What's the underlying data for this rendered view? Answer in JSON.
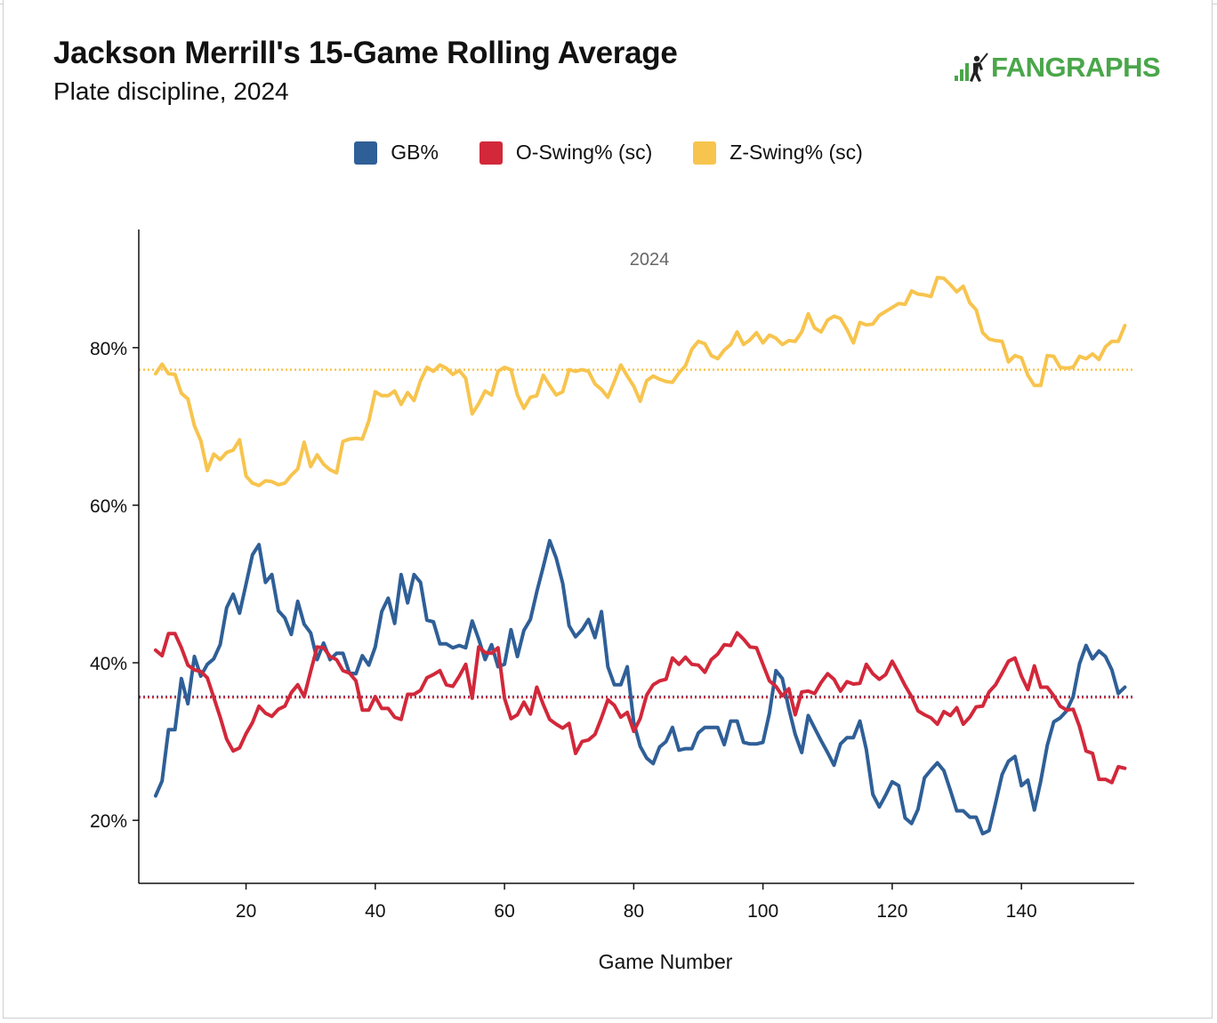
{
  "header": {
    "title": "Jackson Merrill's 15-Game Rolling Average",
    "subtitle": "Plate discipline, 2024",
    "brand": "FANGRAPHS"
  },
  "colors": {
    "brand": "#4aa64a",
    "gb": "#2f5f97",
    "oswing": "#d2283a",
    "zswing": "#f7c44e"
  },
  "chart_data": {
    "type": "line",
    "panel_label": "2024",
    "xlabel": "Game Number",
    "ylabel": "",
    "xlim": [
      4.5,
      156.5
    ],
    "ylim": [
      0.12,
      0.95
    ],
    "xticks": [
      20,
      40,
      60,
      80,
      100,
      120,
      140
    ],
    "yticks": [
      0.2,
      0.4,
      0.6,
      0.8
    ],
    "ytick_labels": [
      "20%",
      "40%",
      "60%",
      "80%"
    ],
    "grid": false,
    "legend_position": "top-center",
    "series": [
      {
        "name": "GB%",
        "color": "#2f5f97",
        "x": [
          6,
          7,
          8,
          9,
          10,
          11,
          12,
          13,
          14,
          15,
          16,
          17,
          18,
          19,
          20,
          21,
          22,
          23,
          24,
          25,
          26,
          27,
          28,
          29,
          30,
          31,
          32,
          33,
          34,
          35,
          36,
          37,
          38,
          39,
          40,
          41,
          42,
          43,
          44,
          45,
          46,
          47,
          48,
          49,
          50,
          51,
          52,
          53,
          54,
          55,
          56,
          57,
          58,
          59,
          60,
          61,
          62,
          63,
          64,
          65,
          66,
          67,
          68,
          69,
          70,
          71,
          72,
          73,
          74,
          75,
          76,
          77,
          78,
          79,
          80,
          81,
          82,
          83,
          84,
          85,
          86,
          87,
          88,
          89,
          90,
          91,
          92,
          93,
          94,
          95,
          96,
          97,
          98,
          99,
          100,
          101,
          102,
          103,
          104,
          105,
          106,
          107,
          108,
          109,
          110,
          111,
          112,
          113,
          114,
          115,
          116,
          117,
          118,
          119,
          120,
          121,
          122,
          123,
          124,
          125,
          126,
          127,
          128,
          129,
          130,
          131,
          132,
          133,
          134,
          135,
          136,
          137,
          138,
          139,
          140,
          141,
          142,
          143,
          144,
          145,
          146,
          147,
          148,
          149,
          150,
          151,
          152,
          153,
          154,
          155,
          156
        ],
        "values": [
          0.231,
          0.25,
          0.315,
          0.315,
          0.38,
          0.348,
          0.408,
          0.383,
          0.398,
          0.405,
          0.423,
          0.47,
          0.487,
          0.463,
          0.5,
          0.537,
          0.55,
          0.502,
          0.512,
          0.466,
          0.457,
          0.436,
          0.478,
          0.449,
          0.438,
          0.404,
          0.425,
          0.404,
          0.412,
          0.412,
          0.387,
          0.386,
          0.409,
          0.397,
          0.42,
          0.465,
          0.482,
          0.45,
          0.512,
          0.476,
          0.512,
          0.502,
          0.454,
          0.452,
          0.424,
          0.424,
          0.419,
          0.422,
          0.419,
          0.453,
          0.43,
          0.404,
          0.423,
          0.395,
          0.398,
          0.442,
          0.408,
          0.441,
          0.455,
          0.49,
          0.522,
          0.555,
          0.533,
          0.501,
          0.447,
          0.433,
          0.442,
          0.455,
          0.432,
          0.465,
          0.395,
          0.372,
          0.372,
          0.395,
          0.324,
          0.294,
          0.279,
          0.272,
          0.293,
          0.3,
          0.318,
          0.289,
          0.291,
          0.291,
          0.311,
          0.318,
          0.318,
          0.318,
          0.296,
          0.326,
          0.326,
          0.299,
          0.297,
          0.297,
          0.299,
          0.336,
          0.39,
          0.38,
          0.342,
          0.309,
          0.286,
          0.333,
          0.317,
          0.301,
          0.286,
          0.27,
          0.297,
          0.305,
          0.305,
          0.326,
          0.29,
          0.233,
          0.217,
          0.232,
          0.249,
          0.244,
          0.203,
          0.196,
          0.214,
          0.254,
          0.264,
          0.273,
          0.263,
          0.238,
          0.212,
          0.212,
          0.204,
          0.204,
          0.183,
          0.187,
          0.222,
          0.258,
          0.275,
          0.281,
          0.244,
          0.251,
          0.213,
          0.25,
          0.295,
          0.325,
          0.33,
          0.339,
          0.357,
          0.399,
          0.422,
          0.405,
          0.415,
          0.408,
          0.391,
          0.361,
          0.369
        ]
      },
      {
        "name": "O-Swing% (sc)",
        "color": "#d2283a",
        "x": [
          6,
          7,
          8,
          9,
          10,
          11,
          12,
          13,
          14,
          15,
          16,
          17,
          18,
          19,
          20,
          21,
          22,
          23,
          24,
          25,
          26,
          27,
          28,
          29,
          30,
          31,
          32,
          33,
          34,
          35,
          36,
          37,
          38,
          39,
          40,
          41,
          42,
          43,
          44,
          45,
          46,
          47,
          48,
          49,
          50,
          51,
          52,
          53,
          54,
          55,
          56,
          57,
          58,
          59,
          60,
          61,
          62,
          63,
          64,
          65,
          66,
          67,
          68,
          69,
          70,
          71,
          72,
          73,
          74,
          75,
          76,
          77,
          78,
          79,
          80,
          81,
          82,
          83,
          84,
          85,
          86,
          87,
          88,
          89,
          90,
          91,
          92,
          93,
          94,
          95,
          96,
          97,
          98,
          99,
          100,
          101,
          102,
          103,
          104,
          105,
          106,
          107,
          108,
          109,
          110,
          111,
          112,
          113,
          114,
          115,
          116,
          117,
          118,
          119,
          120,
          121,
          122,
          123,
          124,
          125,
          126,
          127,
          128,
          129,
          130,
          131,
          132,
          133,
          134,
          135,
          136,
          137,
          138,
          139,
          140,
          141,
          142,
          143,
          144,
          145,
          146,
          147,
          148,
          149,
          150,
          151,
          152,
          153,
          154,
          155,
          156
        ],
        "values": [
          0.416,
          0.409,
          0.437,
          0.437,
          0.419,
          0.397,
          0.391,
          0.389,
          0.381,
          0.356,
          0.331,
          0.303,
          0.288,
          0.292,
          0.31,
          0.324,
          0.345,
          0.336,
          0.332,
          0.341,
          0.345,
          0.362,
          0.372,
          0.357,
          0.389,
          0.42,
          0.419,
          0.408,
          0.404,
          0.39,
          0.387,
          0.377,
          0.34,
          0.34,
          0.357,
          0.342,
          0.342,
          0.331,
          0.328,
          0.36,
          0.36,
          0.365,
          0.381,
          0.385,
          0.39,
          0.372,
          0.37,
          0.383,
          0.398,
          0.355,
          0.42,
          0.413,
          0.412,
          0.419,
          0.355,
          0.329,
          0.334,
          0.35,
          0.335,
          0.369,
          0.347,
          0.328,
          0.322,
          0.317,
          0.323,
          0.285,
          0.3,
          0.302,
          0.309,
          0.33,
          0.353,
          0.346,
          0.331,
          0.337,
          0.313,
          0.329,
          0.359,
          0.372,
          0.377,
          0.379,
          0.406,
          0.398,
          0.407,
          0.398,
          0.397,
          0.388,
          0.404,
          0.411,
          0.423,
          0.422,
          0.438,
          0.43,
          0.42,
          0.419,
          0.398,
          0.377,
          0.37,
          0.358,
          0.367,
          0.334,
          0.363,
          0.364,
          0.361,
          0.375,
          0.386,
          0.379,
          0.364,
          0.376,
          0.373,
          0.374,
          0.398,
          0.386,
          0.379,
          0.385,
          0.402,
          0.387,
          0.371,
          0.357,
          0.339,
          0.334,
          0.33,
          0.322,
          0.338,
          0.333,
          0.343,
          0.322,
          0.331,
          0.344,
          0.345,
          0.363,
          0.372,
          0.387,
          0.402,
          0.406,
          0.383,
          0.366,
          0.396,
          0.369,
          0.369,
          0.358,
          0.345,
          0.34,
          0.341,
          0.319,
          0.288,
          0.285,
          0.252,
          0.252,
          0.248,
          0.268,
          0.266
        ]
      },
      {
        "name": "Z-Swing% (sc)",
        "color": "#f7c44e",
        "x": [
          6,
          7,
          8,
          9,
          10,
          11,
          12,
          13,
          14,
          15,
          16,
          17,
          18,
          19,
          20,
          21,
          22,
          23,
          24,
          25,
          26,
          27,
          28,
          29,
          30,
          31,
          32,
          33,
          34,
          35,
          36,
          37,
          38,
          39,
          40,
          41,
          42,
          43,
          44,
          45,
          46,
          47,
          48,
          49,
          50,
          51,
          52,
          53,
          54,
          55,
          56,
          57,
          58,
          59,
          60,
          61,
          62,
          63,
          64,
          65,
          66,
          67,
          68,
          69,
          70,
          71,
          72,
          73,
          74,
          75,
          76,
          77,
          78,
          79,
          80,
          81,
          82,
          83,
          84,
          85,
          86,
          87,
          88,
          89,
          90,
          91,
          92,
          93,
          94,
          95,
          96,
          97,
          98,
          99,
          100,
          101,
          102,
          103,
          104,
          105,
          106,
          107,
          108,
          109,
          110,
          111,
          112,
          113,
          114,
          115,
          116,
          117,
          118,
          119,
          120,
          121,
          122,
          123,
          124,
          125,
          126,
          127,
          128,
          129,
          130,
          131,
          132,
          133,
          134,
          135,
          136,
          137,
          138,
          139,
          140,
          141,
          142,
          143,
          144,
          145,
          146,
          147,
          148,
          149,
          150,
          151,
          152,
          153,
          154,
          155,
          156
        ],
        "values": [
          0.767,
          0.779,
          0.767,
          0.766,
          0.742,
          0.735,
          0.701,
          0.682,
          0.644,
          0.665,
          0.658,
          0.667,
          0.67,
          0.683,
          0.637,
          0.628,
          0.625,
          0.631,
          0.63,
          0.626,
          0.628,
          0.638,
          0.646,
          0.68,
          0.649,
          0.664,
          0.652,
          0.645,
          0.641,
          0.681,
          0.684,
          0.685,
          0.684,
          0.707,
          0.744,
          0.739,
          0.739,
          0.745,
          0.728,
          0.743,
          0.733,
          0.758,
          0.775,
          0.77,
          0.778,
          0.774,
          0.766,
          0.771,
          0.761,
          0.716,
          0.729,
          0.745,
          0.74,
          0.77,
          0.775,
          0.772,
          0.74,
          0.723,
          0.737,
          0.739,
          0.765,
          0.752,
          0.74,
          0.744,
          0.772,
          0.77,
          0.772,
          0.77,
          0.754,
          0.747,
          0.737,
          0.757,
          0.778,
          0.764,
          0.751,
          0.732,
          0.758,
          0.764,
          0.76,
          0.757,
          0.756,
          0.768,
          0.777,
          0.798,
          0.808,
          0.805,
          0.79,
          0.786,
          0.797,
          0.804,
          0.82,
          0.804,
          0.81,
          0.819,
          0.806,
          0.816,
          0.812,
          0.804,
          0.809,
          0.808,
          0.82,
          0.843,
          0.825,
          0.82,
          0.835,
          0.84,
          0.837,
          0.823,
          0.806,
          0.832,
          0.829,
          0.83,
          0.841,
          0.846,
          0.851,
          0.856,
          0.855,
          0.872,
          0.868,
          0.867,
          0.865,
          0.889,
          0.888,
          0.88,
          0.871,
          0.878,
          0.857,
          0.848,
          0.819,
          0.811,
          0.809,
          0.808,
          0.782,
          0.79,
          0.787,
          0.765,
          0.752,
          0.752,
          0.79,
          0.789,
          0.775,
          0.774,
          0.775,
          0.789,
          0.786,
          0.792,
          0.785,
          0.801,
          0.808,
          0.808,
          0.828
        ]
      }
    ],
    "reference_lines": [
      {
        "series": "Z-Swing% (sc)",
        "value": 0.772,
        "style": "dotted"
      },
      {
        "series": "GB%",
        "value": 0.357,
        "style": "dotted"
      },
      {
        "series": "O-Swing% (sc)",
        "value": 0.356,
        "style": "dotted"
      }
    ]
  }
}
